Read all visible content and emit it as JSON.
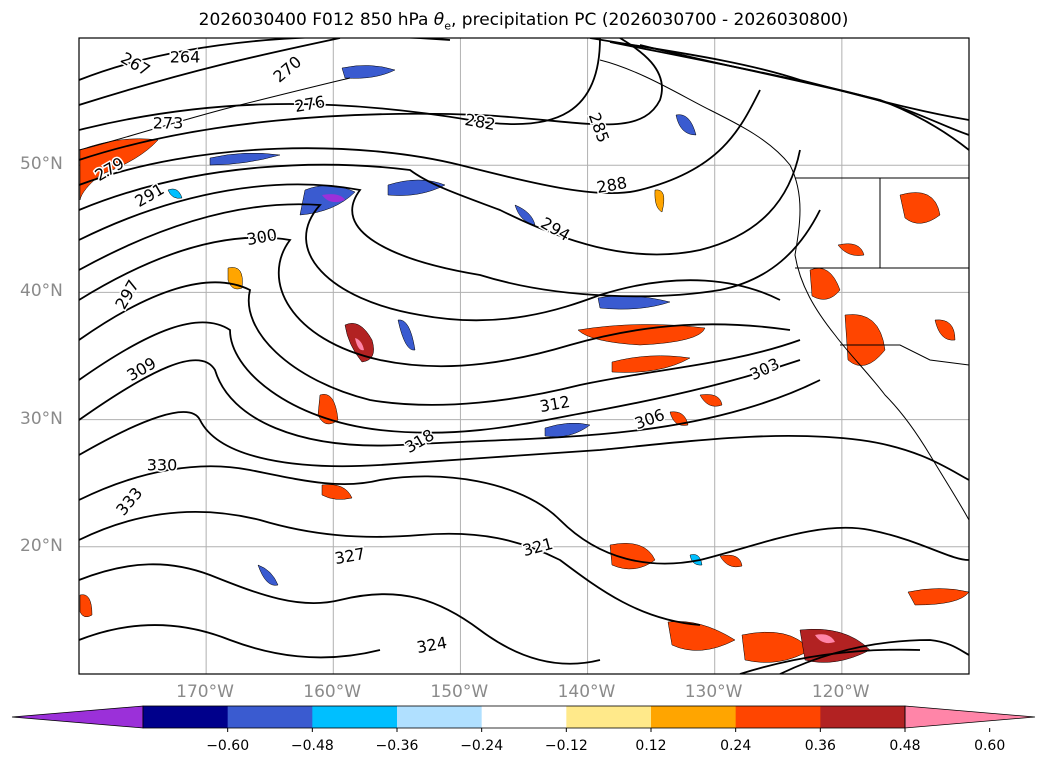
{
  "title": {
    "run": "2026030400",
    "forecast": "F012",
    "level": "850 hPa",
    "variable_symbol": "θ",
    "variable_subscript": "e",
    "rest": ", precipitation PC (2026030700 - 2026030800)"
  },
  "map": {
    "projection": "PlateCarree",
    "extent": {
      "lon_min": -180,
      "lon_max": -110,
      "lat_min": 10,
      "lat_max": 60
    },
    "lat_ticks": [
      {
        "value": 50,
        "label": "50°N"
      },
      {
        "value": 40,
        "label": "40°N"
      },
      {
        "value": 30,
        "label": "30°N"
      },
      {
        "value": 20,
        "label": "20°N"
      }
    ],
    "lon_ticks": [
      {
        "value": -170,
        "label": "170°W"
      },
      {
        "value": -160,
        "label": "160°W"
      },
      {
        "value": -150,
        "label": "150°W"
      },
      {
        "value": -140,
        "label": "140°W"
      },
      {
        "value": -130,
        "label": "130°W"
      },
      {
        "value": -120,
        "label": "120°W"
      }
    ],
    "contour_labels": [
      "264",
      "267",
      "270",
      "273",
      "276",
      "279",
      "282",
      "285",
      "288",
      "291",
      "294",
      "297",
      "300",
      "303",
      "306",
      "309",
      "312",
      "318",
      "321",
      "324",
      "327",
      "330",
      "333"
    ]
  },
  "colorbar": {
    "colors": {
      "min_extend": "#9b30d9",
      "bins": [
        "#00008b",
        "#3a5bd0",
        "#00bfff",
        "#b0e0ff",
        "#ffffff",
        "#ffe98a",
        "#ffa500",
        "#ff4500",
        "#b22222"
      ],
      "max_extend": "#ff85a8"
    },
    "tick_labels": [
      "−0.60",
      "−0.48",
      "−0.36",
      "−0.24",
      "−0.12",
      "0.12",
      "0.24",
      "0.36",
      "0.48",
      "0.60"
    ]
  }
}
